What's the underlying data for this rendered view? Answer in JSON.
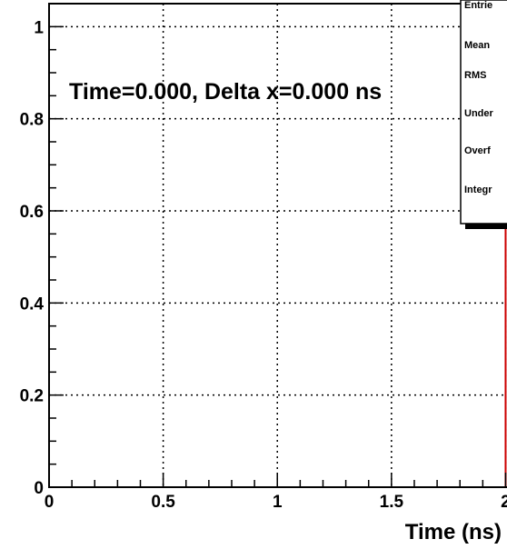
{
  "chart_data": {
    "type": "line",
    "xlabel": "Time (ns)",
    "ylabel": "",
    "xlim": [
      0,
      2.03
    ],
    "ylim": [
      0,
      1.05
    ],
    "x_ticks": [
      0,
      0.5,
      1,
      1.5,
      2
    ],
    "x_tick_labels": [
      "0",
      "0.5",
      "1",
      "1.5",
      "2"
    ],
    "y_ticks": [
      0,
      0.2,
      0.4,
      0.6,
      0.8,
      1
    ],
    "y_tick_labels": [
      "0",
      "0.2",
      "0.4",
      "0.6",
      "0.8",
      "1"
    ],
    "grid": true,
    "annotation": "Time=0.000, Delta x=0.000 ns",
    "stats_box": {
      "placement": "top-right",
      "labels": [
        "Entrie",
        "Mean",
        "RMS",
        "Under",
        "Overf",
        "Integr"
      ]
    },
    "series": [
      {
        "x": [
          0,
          2.0,
          2.0
        ],
        "y": [
          0,
          0,
          0.6
        ],
        "color": "#cc0000"
      }
    ]
  }
}
